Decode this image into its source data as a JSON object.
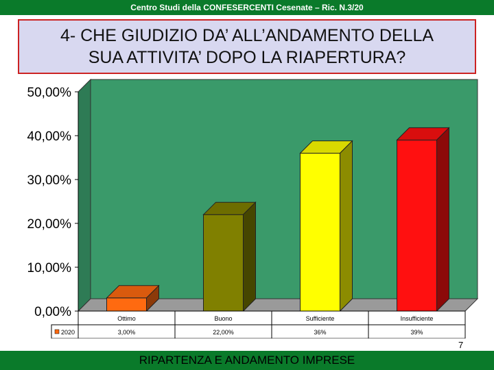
{
  "header": {
    "source": "Centro Studi della CONFESERCENTI Cesenate – Ric. N.3/20"
  },
  "slide": {
    "title": "4- CHE GIUDIZIO DA’ ALL’ANDAMENTO DELLA\nSUA ATTIVITA’ DOPO LA RIAPERTURA?",
    "page_number": "7"
  },
  "footer": {
    "text": "RIPARTENZA E ANDAMENTO IMPRESE"
  },
  "colors": {
    "header_bar": "#0a7a2a",
    "title_background": "#d8d8f0",
    "title_border": "#cc2222",
    "plot_background": "#3a9a6a",
    "bar_colors": [
      "#ff6a10",
      "#808000",
      "#ffff00",
      "#ff1010"
    ]
  },
  "chart_data": {
    "type": "bar",
    "style": "3d",
    "categories": [
      "Ottimo",
      "Buono",
      "Sufficiente",
      "Insufficiente"
    ],
    "series": [
      {
        "name": "2020",
        "values": [
          3.0,
          22.0,
          36.0,
          39.0
        ]
      }
    ],
    "data_table_labels": [
      "3,00%",
      "22,00%",
      "36%",
      "39%"
    ],
    "y_ticks": [
      "0,00%",
      "10,00%",
      "20,00%",
      "30,00%",
      "40,00%",
      "50,00%"
    ],
    "ylim": [
      0,
      50
    ],
    "grid": false,
    "legend": "data table"
  }
}
